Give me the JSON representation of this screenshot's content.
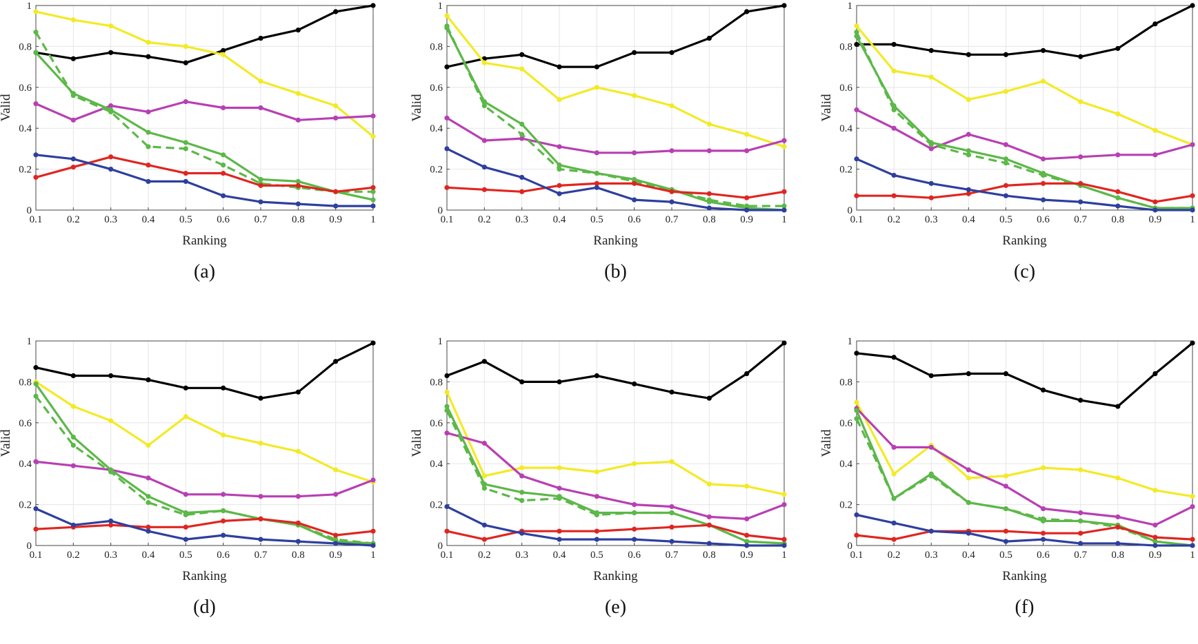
{
  "figure": {
    "panel_count": 6
  },
  "colors": {
    "black": "#000000",
    "yellow": "#f3ea26",
    "magenta": "#b83fb3",
    "green_solid": "#5cb848",
    "green_dashed": "#5cb848",
    "blue": "#2e3f9e",
    "red": "#e02520",
    "grid": "#e6e6e6",
    "axis": "#444444"
  },
  "chart_data": [
    {
      "type": "line",
      "caption": "(a)",
      "xlabel": "Ranking",
      "ylabel": "Valid",
      "xlim": [
        0.1,
        1
      ],
      "ylim": [
        0,
        1
      ],
      "xticks": [
        "0.1",
        "0.2",
        "0.3",
        "0.4",
        "0.5",
        "0.6",
        "0.7",
        "0.8",
        "0.9",
        "1"
      ],
      "yticks": [
        "0",
        "0.2",
        "0.4",
        "0.6",
        "0.8",
        "1"
      ],
      "x": [
        0.1,
        0.2,
        0.3,
        0.4,
        0.5,
        0.6,
        0.7,
        0.8,
        0.9,
        1.0
      ],
      "series": [
        {
          "name": "black",
          "color": "black",
          "dash": false,
          "values": [
            0.77,
            0.74,
            0.77,
            0.75,
            0.72,
            0.78,
            0.84,
            0.88,
            0.97,
            1.0
          ]
        },
        {
          "name": "yellow",
          "color": "yellow",
          "dash": false,
          "values": [
            0.97,
            0.93,
            0.9,
            0.82,
            0.8,
            0.76,
            0.63,
            0.57,
            0.51,
            0.36
          ]
        },
        {
          "name": "magenta",
          "color": "magenta",
          "dash": false,
          "values": [
            0.52,
            0.44,
            0.51,
            0.48,
            0.53,
            0.5,
            0.5,
            0.44,
            0.45,
            0.46
          ]
        },
        {
          "name": "green-dashed",
          "color": "green_dashed",
          "dash": true,
          "values": [
            0.87,
            0.56,
            0.48,
            0.31,
            0.3,
            0.22,
            0.13,
            0.11,
            0.09,
            0.09
          ]
        },
        {
          "name": "green-solid",
          "color": "green_solid",
          "dash": false,
          "values": [
            0.77,
            0.57,
            0.49,
            0.38,
            0.33,
            0.27,
            0.15,
            0.14,
            0.09,
            0.05
          ]
        },
        {
          "name": "red",
          "color": "red",
          "dash": false,
          "values": [
            0.16,
            0.21,
            0.26,
            0.22,
            0.18,
            0.18,
            0.12,
            0.12,
            0.09,
            0.11
          ]
        },
        {
          "name": "blue",
          "color": "blue",
          "dash": false,
          "values": [
            0.27,
            0.25,
            0.2,
            0.14,
            0.14,
            0.07,
            0.04,
            0.03,
            0.02,
            0.02
          ]
        }
      ]
    },
    {
      "type": "line",
      "caption": "(b)",
      "xlabel": "Ranking",
      "ylabel": "Valid",
      "xlim": [
        0.1,
        1
      ],
      "ylim": [
        0,
        1
      ],
      "xticks": [
        "0.1",
        "0.2",
        "0.3",
        "0.4",
        "0.5",
        "0.6",
        "0.7",
        "0.8",
        "0.9",
        "1"
      ],
      "yticks": [
        "0",
        "0.2",
        "0.4",
        "0.6",
        "0.8",
        "1"
      ],
      "x": [
        0.1,
        0.2,
        0.3,
        0.4,
        0.5,
        0.6,
        0.7,
        0.8,
        0.9,
        1.0
      ],
      "series": [
        {
          "name": "black",
          "color": "black",
          "dash": false,
          "values": [
            0.7,
            0.74,
            0.76,
            0.7,
            0.7,
            0.77,
            0.77,
            0.84,
            0.97,
            1.0
          ]
        },
        {
          "name": "yellow",
          "color": "yellow",
          "dash": false,
          "values": [
            0.95,
            0.72,
            0.69,
            0.54,
            0.6,
            0.56,
            0.51,
            0.42,
            0.37,
            0.31
          ]
        },
        {
          "name": "magenta",
          "color": "magenta",
          "dash": false,
          "values": [
            0.45,
            0.34,
            0.35,
            0.31,
            0.28,
            0.28,
            0.29,
            0.29,
            0.29,
            0.34
          ]
        },
        {
          "name": "green-dashed",
          "color": "green_dashed",
          "dash": true,
          "values": [
            0.9,
            0.51,
            0.37,
            0.2,
            0.18,
            0.14,
            0.1,
            0.05,
            0.02,
            0.02
          ]
        },
        {
          "name": "green-solid",
          "color": "green_solid",
          "dash": false,
          "values": [
            0.89,
            0.53,
            0.42,
            0.22,
            0.18,
            0.15,
            0.1,
            0.04,
            0.01,
            0.0
          ]
        },
        {
          "name": "red",
          "color": "red",
          "dash": false,
          "values": [
            0.11,
            0.1,
            0.09,
            0.12,
            0.13,
            0.13,
            0.09,
            0.08,
            0.06,
            0.09
          ]
        },
        {
          "name": "blue",
          "color": "blue",
          "dash": false,
          "values": [
            0.3,
            0.21,
            0.16,
            0.08,
            0.11,
            0.05,
            0.04,
            0.01,
            0.0,
            0.0
          ]
        }
      ]
    },
    {
      "type": "line",
      "caption": "(c)",
      "xlabel": "Ranking",
      "ylabel": "Valid",
      "xlim": [
        0.1,
        1
      ],
      "ylim": [
        0,
        1
      ],
      "xticks": [
        "0.1",
        "0.2",
        "0.3",
        "0.4",
        "0.5",
        "0.6",
        "0.7",
        "0.8",
        "0.9",
        "1"
      ],
      "yticks": [
        "0",
        "0.2",
        "0.4",
        "0.6",
        "0.8",
        "1"
      ],
      "x": [
        0.1,
        0.2,
        0.3,
        0.4,
        0.5,
        0.6,
        0.7,
        0.8,
        0.9,
        1.0
      ],
      "series": [
        {
          "name": "black",
          "color": "black",
          "dash": false,
          "values": [
            0.81,
            0.81,
            0.78,
            0.76,
            0.76,
            0.78,
            0.75,
            0.79,
            0.91,
            1.0
          ]
        },
        {
          "name": "yellow",
          "color": "yellow",
          "dash": false,
          "values": [
            0.9,
            0.68,
            0.65,
            0.54,
            0.58,
            0.63,
            0.53,
            0.47,
            0.39,
            0.32
          ]
        },
        {
          "name": "magenta",
          "color": "magenta",
          "dash": false,
          "values": [
            0.49,
            0.4,
            0.3,
            0.37,
            0.32,
            0.25,
            0.26,
            0.27,
            0.27,
            0.32
          ]
        },
        {
          "name": "green-dashed",
          "color": "green_dashed",
          "dash": true,
          "values": [
            0.87,
            0.49,
            0.32,
            0.27,
            0.23,
            0.17,
            0.12,
            0.06,
            0.01,
            0.01
          ]
        },
        {
          "name": "green-solid",
          "color": "green_solid",
          "dash": false,
          "values": [
            0.85,
            0.51,
            0.33,
            0.29,
            0.25,
            0.18,
            0.12,
            0.06,
            0.01,
            0.01
          ]
        },
        {
          "name": "red",
          "color": "red",
          "dash": false,
          "values": [
            0.07,
            0.07,
            0.06,
            0.08,
            0.12,
            0.13,
            0.13,
            0.09,
            0.04,
            0.07
          ]
        },
        {
          "name": "blue",
          "color": "blue",
          "dash": false,
          "values": [
            0.25,
            0.17,
            0.13,
            0.1,
            0.07,
            0.05,
            0.04,
            0.02,
            0.0,
            0.0
          ]
        }
      ]
    },
    {
      "type": "line",
      "caption": "(d)",
      "xlabel": "Ranking",
      "ylabel": "Valid",
      "xlim": [
        0.1,
        1
      ],
      "ylim": [
        0,
        1
      ],
      "xticks": [
        "0.1",
        "0.2",
        "0.3",
        "0.4",
        "0.5",
        "0.6",
        "0.7",
        "0.8",
        "0.9",
        "1"
      ],
      "yticks": [
        "0",
        "0.2",
        "0.4",
        "0.6",
        "0.8",
        "1"
      ],
      "x": [
        0.1,
        0.2,
        0.3,
        0.4,
        0.5,
        0.6,
        0.7,
        0.8,
        0.9,
        1.0
      ],
      "series": [
        {
          "name": "black",
          "color": "black",
          "dash": false,
          "values": [
            0.87,
            0.83,
            0.83,
            0.81,
            0.77,
            0.77,
            0.72,
            0.75,
            0.9,
            0.99
          ]
        },
        {
          "name": "yellow",
          "color": "yellow",
          "dash": false,
          "values": [
            0.8,
            0.68,
            0.61,
            0.49,
            0.63,
            0.54,
            0.5,
            0.46,
            0.37,
            0.31
          ]
        },
        {
          "name": "magenta",
          "color": "magenta",
          "dash": false,
          "values": [
            0.41,
            0.39,
            0.37,
            0.33,
            0.25,
            0.25,
            0.24,
            0.24,
            0.25,
            0.32
          ]
        },
        {
          "name": "green-dashed",
          "color": "green_dashed",
          "dash": true,
          "values": [
            0.73,
            0.49,
            0.36,
            0.21,
            0.15,
            0.17,
            0.13,
            0.1,
            0.03,
            0.01
          ]
        },
        {
          "name": "green-solid",
          "color": "green_solid",
          "dash": false,
          "values": [
            0.79,
            0.53,
            0.37,
            0.24,
            0.16,
            0.17,
            0.13,
            0.1,
            0.02,
            0.01
          ]
        },
        {
          "name": "red",
          "color": "red",
          "dash": false,
          "values": [
            0.08,
            0.09,
            0.1,
            0.09,
            0.09,
            0.12,
            0.13,
            0.11,
            0.05,
            0.07
          ]
        },
        {
          "name": "blue",
          "color": "blue",
          "dash": false,
          "values": [
            0.18,
            0.1,
            0.12,
            0.07,
            0.03,
            0.05,
            0.03,
            0.02,
            0.01,
            0.0
          ]
        }
      ]
    },
    {
      "type": "line",
      "caption": "(e)",
      "xlabel": "Ranking",
      "ylabel": "Valid",
      "xlim": [
        0.1,
        1
      ],
      "ylim": [
        0,
        1
      ],
      "xticks": [
        "0.1",
        "0.2",
        "0.3",
        "0.4",
        "0.5",
        "0.6",
        "0.7",
        "0.8",
        "0.9",
        "1"
      ],
      "yticks": [
        "0",
        "0.2",
        "0.4",
        "0.6",
        "0.8",
        "1"
      ],
      "x": [
        0.1,
        0.2,
        0.3,
        0.4,
        0.5,
        0.6,
        0.7,
        0.8,
        0.9,
        1.0
      ],
      "series": [
        {
          "name": "black",
          "color": "black",
          "dash": false,
          "values": [
            0.83,
            0.9,
            0.8,
            0.8,
            0.83,
            0.79,
            0.75,
            0.72,
            0.84,
            0.99
          ]
        },
        {
          "name": "yellow",
          "color": "yellow",
          "dash": false,
          "values": [
            0.75,
            0.34,
            0.38,
            0.38,
            0.36,
            0.4,
            0.41,
            0.3,
            0.29,
            0.25
          ]
        },
        {
          "name": "magenta",
          "color": "magenta",
          "dash": false,
          "values": [
            0.55,
            0.5,
            0.34,
            0.28,
            0.24,
            0.2,
            0.19,
            0.14,
            0.13,
            0.2
          ]
        },
        {
          "name": "green-dashed",
          "color": "green_dashed",
          "dash": true,
          "values": [
            0.66,
            0.28,
            0.22,
            0.23,
            0.15,
            0.16,
            0.16,
            0.1,
            0.02,
            0.01
          ]
        },
        {
          "name": "green-solid",
          "color": "green_solid",
          "dash": false,
          "values": [
            0.68,
            0.3,
            0.26,
            0.24,
            0.16,
            0.16,
            0.16,
            0.1,
            0.02,
            0.01
          ]
        },
        {
          "name": "red",
          "color": "red",
          "dash": false,
          "values": [
            0.07,
            0.03,
            0.07,
            0.07,
            0.07,
            0.08,
            0.09,
            0.1,
            0.05,
            0.03
          ]
        },
        {
          "name": "blue",
          "color": "blue",
          "dash": false,
          "values": [
            0.19,
            0.1,
            0.06,
            0.03,
            0.03,
            0.03,
            0.02,
            0.01,
            0.0,
            0.0
          ]
        }
      ]
    },
    {
      "type": "line",
      "caption": "(f)",
      "xlabel": "Ranking",
      "ylabel": "Valid",
      "xlim": [
        0.1,
        1
      ],
      "ylim": [
        0,
        1
      ],
      "xticks": [
        "0.1",
        "0.2",
        "0.3",
        "0.4",
        "0.5",
        "0.6",
        "0.7",
        "0.8",
        "0.9",
        "1"
      ],
      "yticks": [
        "0",
        "0.2",
        "0.4",
        "0.6",
        "0.8",
        "1"
      ],
      "x": [
        0.1,
        0.2,
        0.3,
        0.4,
        0.5,
        0.6,
        0.7,
        0.8,
        0.9,
        1.0
      ],
      "series": [
        {
          "name": "black",
          "color": "black",
          "dash": false,
          "values": [
            0.94,
            0.92,
            0.83,
            0.84,
            0.84,
            0.76,
            0.71,
            0.68,
            0.84,
            0.99
          ]
        },
        {
          "name": "yellow",
          "color": "yellow",
          "dash": false,
          "values": [
            0.7,
            0.35,
            0.49,
            0.33,
            0.34,
            0.38,
            0.37,
            0.33,
            0.27,
            0.24
          ]
        },
        {
          "name": "magenta",
          "color": "magenta",
          "dash": false,
          "values": [
            0.67,
            0.48,
            0.48,
            0.37,
            0.29,
            0.18,
            0.16,
            0.14,
            0.1,
            0.19
          ]
        },
        {
          "name": "green-dashed",
          "color": "green_dashed",
          "dash": true,
          "values": [
            0.62,
            0.23,
            0.34,
            0.21,
            0.18,
            0.13,
            0.12,
            0.09,
            0.02,
            0.0
          ]
        },
        {
          "name": "green-solid",
          "color": "green_solid",
          "dash": false,
          "values": [
            0.66,
            0.23,
            0.35,
            0.21,
            0.18,
            0.12,
            0.12,
            0.1,
            0.02,
            0.0
          ]
        },
        {
          "name": "red",
          "color": "red",
          "dash": false,
          "values": [
            0.05,
            0.03,
            0.07,
            0.07,
            0.07,
            0.06,
            0.06,
            0.09,
            0.04,
            0.03
          ]
        },
        {
          "name": "blue",
          "color": "blue",
          "dash": false,
          "values": [
            0.15,
            0.11,
            0.07,
            0.06,
            0.02,
            0.03,
            0.01,
            0.01,
            0.0,
            0.0
          ]
        }
      ]
    }
  ]
}
